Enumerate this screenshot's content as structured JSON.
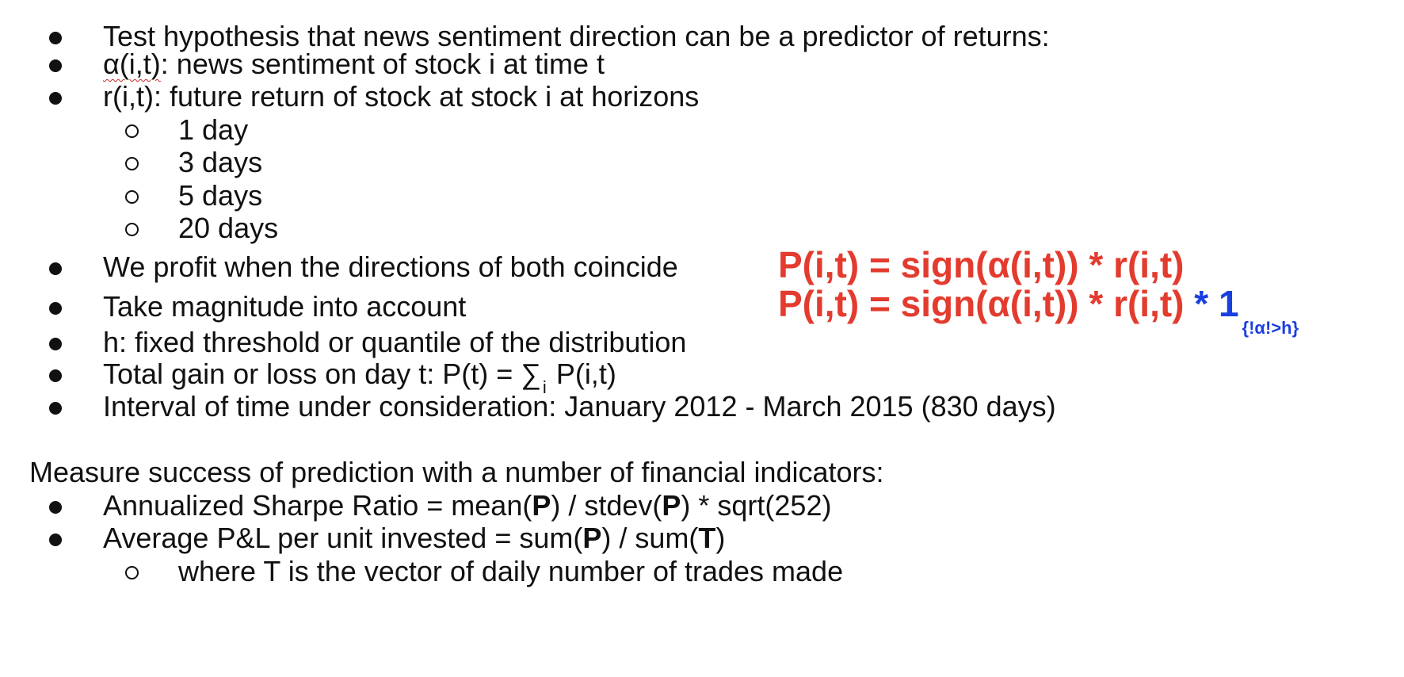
{
  "bullets_top": [
    "Test hypothesis that news sentiment direction can be a predictor of returns:",
    "",
    "r(i,t): future return of stock at stock i at horizons"
  ],
  "alpha_line": {
    "symbol": "α(i,t)",
    "rest": ": news sentiment of stock i at time t"
  },
  "horizons": [
    "1 day",
    "3 days",
    "5 days",
    "20 days"
  ],
  "profit_line": "We profit when the directions of both coincide",
  "magnitude_line": "Take magnitude into account",
  "formula1": "P(i,t) = sign(α(i,t)) * r(i,t)",
  "formula2": {
    "main": "P(i,t) = sign(α(i,t)) * r(i,t) ",
    "indicator": "* 1",
    "subscript": "{!α!>h}"
  },
  "h_line": "h: fixed threshold or quantile of the distribution",
  "total_line": {
    "prefix": "Total gain or loss on day t:  P(t) = ∑",
    "subscript": "i",
    "suffix": "P(i,t)"
  },
  "interval_line": "Interval of time under consideration:   January 2012 - March 2015  (830 days)",
  "measure_heading": "Measure success of prediction with a number of financial indicators:",
  "sharpe": {
    "a": "Annualized Sharpe Ratio = mean(",
    "b1": "P",
    "b": ") / stdev(",
    "b2": "P",
    "c": ") * sqrt(252)"
  },
  "avg_pnl": {
    "a": "Average P&L per unit invested = sum(",
    "b1": "P",
    "b": ") / sum(",
    "b2": "T",
    "c": ")"
  },
  "where_line": "where T is the vector of daily number of trades made"
}
